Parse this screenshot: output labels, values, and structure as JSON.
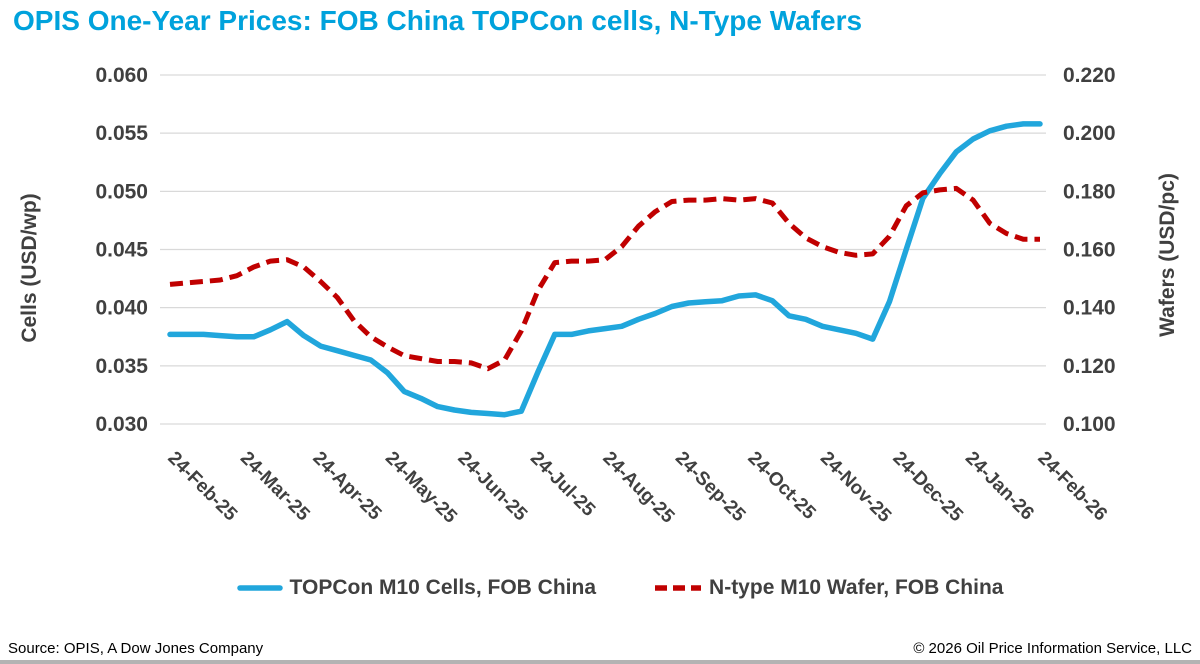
{
  "page": {
    "title": "OPIS One-Year Prices: FOB China TOPCon cells, N-Type Wafers",
    "footer_left": "Source: OPIS, A Dow Jones Company",
    "footer_right": "© 2026 Oil Price Information Service, LLC"
  },
  "colors": {
    "title": "#00A2DC",
    "cells_line": "#21A6DC",
    "wafer_line": "#C00000",
    "axis_text": "#404040",
    "gridline": "#D9D9D9",
    "footer_bar": "#B3B3B3"
  },
  "chart_data": {
    "type": "line",
    "title": "OPIS One-Year Prices: FOB China TOPCon cells, N-Type Wafers",
    "grid": "horizontal",
    "legend_position": "bottom",
    "x_tick_labels": [
      "24-Feb-25",
      "24-Mar-25",
      "24-Apr-25",
      "24-May-25",
      "24-Jun-25",
      "24-Jul-25",
      "24-Aug-25",
      "24-Sep-25",
      "24-Oct-25",
      "24-Nov-25",
      "24-Dec-25",
      "24-Jan-26",
      "24-Feb-26"
    ],
    "x_frequency": "weekly",
    "y_left": {
      "label": "Cells (USD/wp)",
      "min": 0.03,
      "max": 0.06,
      "step": 0.005,
      "tick_labels": [
        "0.060",
        "0.055",
        "0.050",
        "0.045",
        "0.040",
        "0.035",
        "0.030"
      ]
    },
    "y_right": {
      "label": "Wafers (USD/pc)",
      "min": 0.1,
      "max": 0.22,
      "step": 0.02,
      "tick_labels": [
        "0.220",
        "0.200",
        "0.180",
        "0.160",
        "0.140",
        "0.120",
        "0.100"
      ]
    },
    "series": [
      {
        "name": "TOPCon M10 Cells, FOB China",
        "axis": "left",
        "style": "solid",
        "color": "#21A6DC",
        "values": [
          0.0377,
          0.0377,
          0.0377,
          0.0376,
          0.0375,
          0.0375,
          0.0381,
          0.0388,
          0.0376,
          0.0367,
          0.0363,
          0.0359,
          0.0355,
          0.0344,
          0.0328,
          0.0322,
          0.0315,
          0.0312,
          0.031,
          0.0309,
          0.0308,
          0.0311,
          0.0345,
          0.0377,
          0.0377,
          0.038,
          0.0382,
          0.0384,
          0.039,
          0.0395,
          0.0401,
          0.0404,
          0.0405,
          0.0406,
          0.041,
          0.0411,
          0.0406,
          0.0393,
          0.039,
          0.0384,
          0.0381,
          0.0378,
          0.0373,
          0.0405,
          0.045,
          0.0494,
          0.0515,
          0.0534,
          0.0545,
          0.0552,
          0.0556,
          0.0558,
          0.0558
        ]
      },
      {
        "name": "N-type M10 Wafer, FOB China",
        "axis": "right",
        "style": "dashed",
        "color": "#C00000",
        "values": [
          0.148,
          0.1485,
          0.149,
          0.1495,
          0.151,
          0.154,
          0.156,
          0.1565,
          0.154,
          0.149,
          0.1435,
          0.1355,
          0.13,
          0.1265,
          0.1235,
          0.1225,
          0.1215,
          0.1215,
          0.121,
          0.119,
          0.122,
          0.132,
          0.146,
          0.1555,
          0.156,
          0.156,
          0.1565,
          0.161,
          0.168,
          0.173,
          0.1765,
          0.177,
          0.177,
          0.1775,
          0.177,
          0.1775,
          0.176,
          0.169,
          0.164,
          0.161,
          0.159,
          0.158,
          0.1585,
          0.1645,
          0.175,
          0.1795,
          0.1805,
          0.181,
          0.177,
          0.169,
          0.1655,
          0.1635,
          0.1635
        ]
      }
    ]
  }
}
